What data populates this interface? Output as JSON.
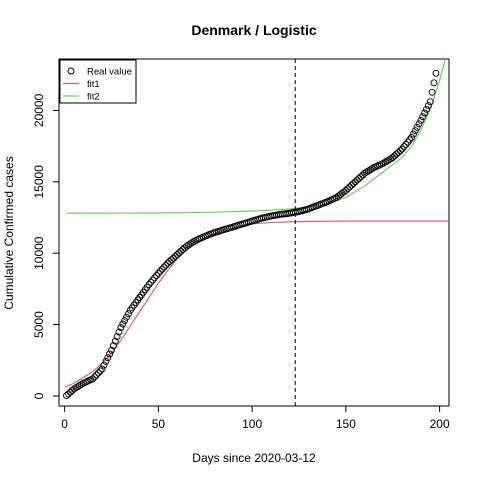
{
  "chart_data": {
    "type": "scatter",
    "title": "Denmark / Logistic",
    "xlabel": "Days since 2020-03-12",
    "ylabel": "Cumulative Confirmed cases",
    "xlim": [
      -3,
      205
    ],
    "ylim": [
      -700,
      23600
    ],
    "xticks": [
      0,
      50,
      100,
      150,
      200
    ],
    "yticks": [
      0,
      5000,
      10000,
      15000,
      20000
    ],
    "vline_x": 123,
    "grid": false,
    "legend_position": "top-left",
    "legend": [
      {
        "label": "Real value",
        "kind": "points"
      },
      {
        "label": "fit1",
        "kind": "line"
      },
      {
        "label": "fit2",
        "kind": "line"
      }
    ],
    "colors": {
      "points": "#000000",
      "fit1": "#df536b",
      "fit2": "#61d04f",
      "vline": "#000000"
    },
    "real_value": {
      "x": [
        1,
        5,
        10,
        15,
        20,
        25,
        30,
        35,
        40,
        45,
        50,
        55,
        60,
        65,
        70,
        75,
        80,
        85,
        90,
        95,
        100,
        105,
        110,
        115,
        120,
        125,
        130,
        135,
        140,
        145,
        150,
        155,
        160,
        165,
        170,
        175,
        180,
        185,
        190,
        195,
        198
      ],
      "y": [
        30,
        500,
        900,
        1200,
        1900,
        3200,
        4800,
        6000,
        6900,
        7800,
        8600,
        9300,
        9900,
        10500,
        10900,
        11200,
        11450,
        11650,
        11850,
        12050,
        12250,
        12450,
        12600,
        12720,
        12800,
        12920,
        13100,
        13350,
        13600,
        13900,
        14400,
        15000,
        15600,
        16000,
        16300,
        16700,
        17300,
        18100,
        19300,
        20600,
        22600
      ]
    },
    "series": [
      {
        "name": "fit1",
        "x": [
          0,
          5,
          10,
          15,
          20,
          25,
          30,
          35,
          40,
          45,
          50,
          55,
          60,
          65,
          70,
          75,
          80,
          85,
          90,
          95,
          100,
          110,
          120,
          130,
          140,
          150,
          160,
          170,
          180,
          190,
          200,
          205
        ],
        "y": [
          600,
          900,
          1300,
          1700,
          2300,
          3000,
          3900,
          4900,
          5900,
          6900,
          7900,
          8800,
          9600,
          10200,
          10700,
          11100,
          11400,
          11650,
          11800,
          11950,
          12050,
          12150,
          12200,
          12230,
          12240,
          12245,
          12248,
          12250,
          12250,
          12250,
          12250,
          12250
        ]
      },
      {
        "name": "fit2",
        "x": [
          1,
          20,
          40,
          60,
          80,
          100,
          110,
          120,
          130,
          140,
          150,
          160,
          170,
          180,
          185,
          190,
          195,
          200,
          203
        ],
        "y": [
          12800,
          12800,
          12810,
          12830,
          12870,
          12950,
          13010,
          13100,
          13230,
          13450,
          13900,
          14700,
          15700,
          16700,
          17500,
          18600,
          20100,
          22100,
          23600
        ]
      }
    ]
  }
}
